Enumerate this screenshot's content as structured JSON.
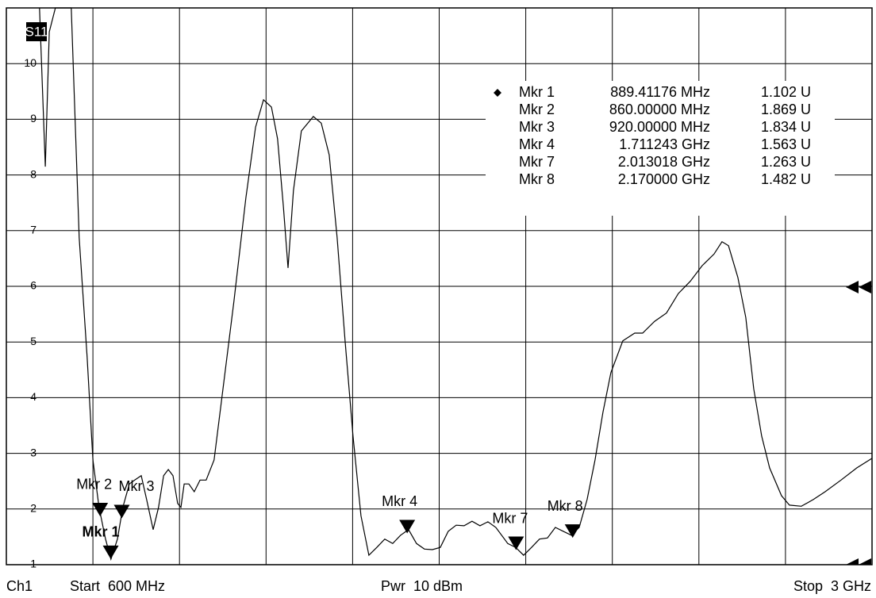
{
  "chart_data": {
    "type": "line",
    "trace_label": "S11",
    "color": "#000000",
    "xlim": [
      600,
      3000
    ],
    "ylim": [
      1,
      11
    ],
    "yticks": [
      1,
      2,
      3,
      4,
      5,
      6,
      7,
      8,
      9,
      10
    ],
    "grid": true,
    "x": [
      692,
      708,
      719,
      736,
      780,
      802,
      824,
      840,
      857,
      875,
      890,
      908,
      923,
      941,
      956,
      974,
      989,
      1007,
      1022,
      1036,
      1049,
      1062,
      1075,
      1084,
      1093,
      1106,
      1121,
      1137,
      1154,
      1176,
      1198,
      1231,
      1264,
      1291,
      1313,
      1335,
      1352,
      1368,
      1381,
      1396,
      1418,
      1451,
      1473,
      1495,
      1517,
      1539,
      1561,
      1583,
      1605,
      1627,
      1649,
      1671,
      1693,
      1715,
      1737,
      1759,
      1781,
      1803,
      1825,
      1847,
      1869,
      1891,
      1913,
      1935,
      1957,
      1990,
      2012,
      2034,
      2056,
      2078,
      2100,
      2122,
      2144,
      2166,
      2188,
      2210,
      2232,
      2254,
      2276,
      2309,
      2342,
      2364,
      2397,
      2430,
      2463,
      2496,
      2529,
      2562,
      2584,
      2602,
      2628,
      2650,
      2672,
      2694,
      2716,
      2749,
      2771,
      2804,
      2837,
      2870,
      2914,
      2958,
      3000
    ],
    "values": [
      11,
      8.15,
      10.57,
      11,
      11,
      6.87,
      4.73,
      2.88,
      2.03,
      1.46,
      1.1,
      1.46,
      2.03,
      2.45,
      2.52,
      2.6,
      2.17,
      1.63,
      2.03,
      2.6,
      2.71,
      2.6,
      2.1,
      2.03,
      2.45,
      2.45,
      2.31,
      2.52,
      2.52,
      2.88,
      4.02,
      5.73,
      7.58,
      8.86,
      9.35,
      9.22,
      8.65,
      7.44,
      6.33,
      7.72,
      8.79,
      9.05,
      8.93,
      8.36,
      6.87,
      5.02,
      3.31,
      1.88,
      1.17,
      1.31,
      1.46,
      1.38,
      1.53,
      1.63,
      1.38,
      1.28,
      1.27,
      1.31,
      1.6,
      1.71,
      1.7,
      1.78,
      1.7,
      1.77,
      1.67,
      1.38,
      1.31,
      1.17,
      1.31,
      1.46,
      1.48,
      1.67,
      1.6,
      1.53,
      1.67,
      2.17,
      2.88,
      3.74,
      4.45,
      5.02,
      5.16,
      5.16,
      5.37,
      5.52,
      5.87,
      6.09,
      6.37,
      6.58,
      6.8,
      6.73,
      6.16,
      5.44,
      4.16,
      3.31,
      2.74,
      2.24,
      2.07,
      2.05,
      2.17,
      2.31,
      2.52,
      2.74,
      2.91
    ],
    "markers": [
      {
        "label": "Mkr 1",
        "frequency": "889.41176 MHz",
        "reading": "1.102 U",
        "x": 889.41176,
        "y": 1.102
      },
      {
        "label": "Mkr 2",
        "frequency": "860.00000 MHz",
        "reading": "1.869 U",
        "x": 860,
        "y": 1.869
      },
      {
        "label": "Mkr 3",
        "frequency": "920.00000 MHz",
        "reading": "1.834 U",
        "x": 920,
        "y": 1.834
      },
      {
        "label": "Mkr 4",
        "frequency": "1.711243 GHz",
        "reading": "1.563 U",
        "x": 1711.243,
        "y": 1.563
      },
      {
        "label": "Mkr 7",
        "frequency": "2.013018 GHz",
        "reading": "1.263 U",
        "x": 2013.018,
        "y": 1.263
      },
      {
        "label": "Mkr 8",
        "frequency": "2.170000 GHz",
        "reading": "1.482 U",
        "x": 2170,
        "y": 1.482
      }
    ],
    "footer": {
      "channel": "Ch1",
      "start": "Start  600 MHz",
      "power": "Pwr  10 dBm",
      "stop": "Stop  3 GHz"
    }
  }
}
